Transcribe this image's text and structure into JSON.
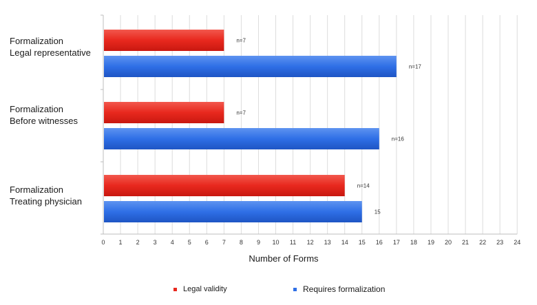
{
  "chart_data": {
    "type": "bar",
    "orientation": "horizontal",
    "categories": [
      [
        "Formalization",
        "Legal representative"
      ],
      [
        "Formalization",
        "Before witnesses"
      ],
      [
        "Formalization",
        "Treating physician"
      ]
    ],
    "series": [
      {
        "name": "Legal validity",
        "color": "#e8281e",
        "values": [
          7,
          7,
          14
        ],
        "labels": [
          "n=7",
          "n=7",
          "n=14"
        ]
      },
      {
        "name": "Requires formalization",
        "color": "#2f6fe6",
        "values": [
          17,
          16,
          15
        ],
        "labels": [
          "n=17",
          "n=16",
          "15"
        ]
      }
    ],
    "xlabel": "Number of Forms",
    "xlim": [
      0,
      24
    ],
    "xticks": [
      "0",
      "1",
      "2",
      "3",
      "4",
      "5",
      "6",
      "7",
      "8",
      "9",
      "10",
      "11",
      "12",
      "13",
      "14",
      "15",
      "16",
      "17",
      "18",
      "19",
      "20",
      "21",
      "22",
      "23",
      "24"
    ],
    "grid": true,
    "legend_position": "bottom"
  }
}
